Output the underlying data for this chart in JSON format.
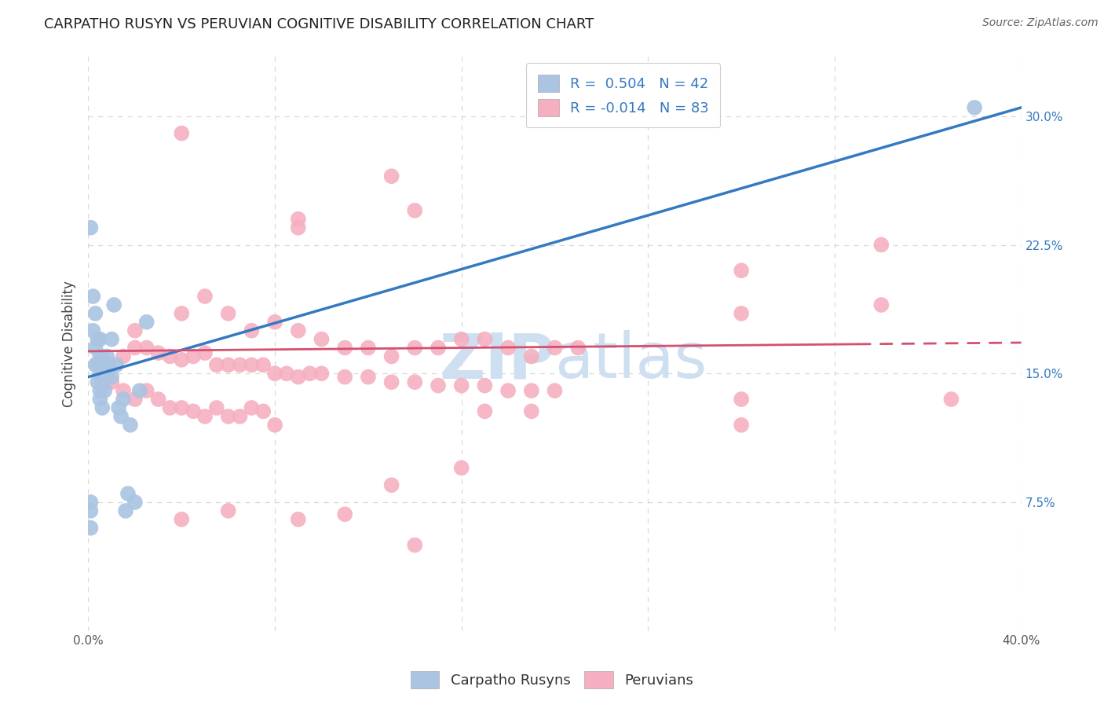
{
  "title": "CARPATHO RUSYN VS PERUVIAN COGNITIVE DISABILITY CORRELATION CHART",
  "source": "Source: ZipAtlas.com",
  "ylabel": "Cognitive Disability",
  "xlim": [
    0.0,
    0.4
  ],
  "ylim": [
    0.0,
    0.335
  ],
  "yticks_right": [
    0.075,
    0.15,
    0.225,
    0.3
  ],
  "ytick_labels_right": [
    "7.5%",
    "15.0%",
    "22.5%",
    "30.0%"
  ],
  "blue_R": 0.504,
  "blue_N": 42,
  "pink_R": -0.014,
  "pink_N": 83,
  "blue_color": "#aac4e2",
  "pink_color": "#f5afc0",
  "blue_line_color": "#3579c0",
  "pink_line_color": "#d45070",
  "watermark_color": "#cddff0",
  "background_color": "#ffffff",
  "grid_color": "#d8d8d8",
  "blue_line": [
    [
      0.0,
      0.148
    ],
    [
      0.4,
      0.305
    ]
  ],
  "pink_line": [
    [
      0.0,
      0.163
    ],
    [
      0.4,
      0.168
    ]
  ],
  "blue_scatter": [
    [
      0.001,
      0.235
    ],
    [
      0.002,
      0.195
    ],
    [
      0.003,
      0.185
    ],
    [
      0.003,
      0.155
    ],
    [
      0.004,
      0.17
    ],
    [
      0.004,
      0.155
    ],
    [
      0.005,
      0.17
    ],
    [
      0.005,
      0.155
    ],
    [
      0.005,
      0.14
    ],
    [
      0.005,
      0.135
    ],
    [
      0.006,
      0.16
    ],
    [
      0.006,
      0.145
    ],
    [
      0.006,
      0.13
    ],
    [
      0.007,
      0.155
    ],
    [
      0.007,
      0.14
    ],
    [
      0.008,
      0.16
    ],
    [
      0.008,
      0.15
    ],
    [
      0.009,
      0.155
    ],
    [
      0.01,
      0.148
    ],
    [
      0.01,
      0.17
    ],
    [
      0.011,
      0.19
    ],
    [
      0.012,
      0.155
    ],
    [
      0.013,
      0.13
    ],
    [
      0.014,
      0.125
    ],
    [
      0.015,
      0.135
    ],
    [
      0.016,
      0.07
    ],
    [
      0.017,
      0.08
    ],
    [
      0.018,
      0.12
    ],
    [
      0.02,
      0.075
    ],
    [
      0.022,
      0.14
    ],
    [
      0.025,
      0.18
    ],
    [
      0.001,
      0.075
    ],
    [
      0.38,
      0.305
    ],
    [
      0.001,
      0.07
    ],
    [
      0.001,
      0.06
    ],
    [
      0.002,
      0.175
    ],
    [
      0.003,
      0.165
    ],
    [
      0.004,
      0.145
    ],
    [
      0.005,
      0.16
    ],
    [
      0.005,
      0.15
    ],
    [
      0.006,
      0.155
    ],
    [
      0.007,
      0.15
    ]
  ],
  "pink_scatter": [
    [
      0.04,
      0.29
    ],
    [
      0.09,
      0.24
    ],
    [
      0.13,
      0.265
    ],
    [
      0.14,
      0.245
    ],
    [
      0.28,
      0.21
    ],
    [
      0.34,
      0.225
    ],
    [
      0.09,
      0.235
    ],
    [
      0.28,
      0.185
    ],
    [
      0.34,
      0.19
    ],
    [
      0.02,
      0.175
    ],
    [
      0.04,
      0.185
    ],
    [
      0.06,
      0.185
    ],
    [
      0.07,
      0.175
    ],
    [
      0.08,
      0.18
    ],
    [
      0.09,
      0.175
    ],
    [
      0.1,
      0.17
    ],
    [
      0.11,
      0.165
    ],
    [
      0.12,
      0.165
    ],
    [
      0.13,
      0.16
    ],
    [
      0.14,
      0.165
    ],
    [
      0.015,
      0.16
    ],
    [
      0.02,
      0.165
    ],
    [
      0.025,
      0.165
    ],
    [
      0.03,
      0.162
    ],
    [
      0.035,
      0.16
    ],
    [
      0.04,
      0.158
    ],
    [
      0.045,
      0.16
    ],
    [
      0.05,
      0.162
    ],
    [
      0.055,
      0.155
    ],
    [
      0.06,
      0.155
    ],
    [
      0.065,
      0.155
    ],
    [
      0.07,
      0.155
    ],
    [
      0.075,
      0.155
    ],
    [
      0.08,
      0.15
    ],
    [
      0.085,
      0.15
    ],
    [
      0.09,
      0.148
    ],
    [
      0.095,
      0.15
    ],
    [
      0.1,
      0.15
    ],
    [
      0.11,
      0.148
    ],
    [
      0.12,
      0.148
    ],
    [
      0.13,
      0.145
    ],
    [
      0.14,
      0.145
    ],
    [
      0.15,
      0.143
    ],
    [
      0.16,
      0.143
    ],
    [
      0.17,
      0.143
    ],
    [
      0.18,
      0.14
    ],
    [
      0.19,
      0.14
    ],
    [
      0.2,
      0.14
    ],
    [
      0.01,
      0.145
    ],
    [
      0.015,
      0.14
    ],
    [
      0.02,
      0.135
    ],
    [
      0.025,
      0.14
    ],
    [
      0.03,
      0.135
    ],
    [
      0.035,
      0.13
    ],
    [
      0.04,
      0.13
    ],
    [
      0.045,
      0.128
    ],
    [
      0.05,
      0.125
    ],
    [
      0.055,
      0.13
    ],
    [
      0.06,
      0.125
    ],
    [
      0.065,
      0.125
    ],
    [
      0.07,
      0.13
    ],
    [
      0.075,
      0.128
    ],
    [
      0.08,
      0.12
    ],
    [
      0.13,
      0.085
    ],
    [
      0.28,
      0.12
    ],
    [
      0.37,
      0.135
    ],
    [
      0.04,
      0.065
    ],
    [
      0.14,
      0.05
    ],
    [
      0.16,
      0.095
    ],
    [
      0.06,
      0.07
    ],
    [
      0.09,
      0.065
    ],
    [
      0.11,
      0.068
    ],
    [
      0.15,
      0.165
    ],
    [
      0.16,
      0.17
    ],
    [
      0.17,
      0.17
    ],
    [
      0.18,
      0.165
    ],
    [
      0.19,
      0.16
    ],
    [
      0.2,
      0.165
    ],
    [
      0.21,
      0.165
    ],
    [
      0.17,
      0.128
    ],
    [
      0.19,
      0.128
    ],
    [
      0.28,
      0.135
    ],
    [
      0.05,
      0.195
    ]
  ]
}
